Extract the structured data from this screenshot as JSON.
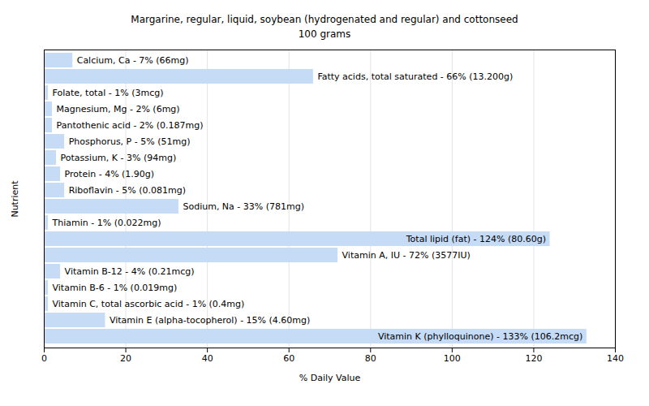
{
  "chart_data": {
    "type": "bar",
    "title": "Margarine, regular, liquid, soybean (hydrogenated and regular) and cottonseed",
    "subtitle": "100 grams",
    "xlabel": "% Daily Value",
    "ylabel": "Nutrient",
    "orientation": "horizontal",
    "tick_labels": "x",
    "grid": true,
    "color": "#c5dbf6",
    "categories": [
      "Calcium, Ca - 7% (66mg)",
      "Fatty acids, total saturated - 66% (13.200g)",
      "Folate, total - 1% (3mcg)",
      "Magnesium, Mg - 2% (6mg)",
      "Pantothenic acid - 2% (0.187mg)",
      "Phosphorus, P - 5% (51mg)",
      "Potassium, K - 3% (94mg)",
      "Protein - 4% (1.90g)",
      "Riboflavin - 5% (0.081mg)",
      "Sodium, Na - 33% (781mg)",
      "Thiamin - 1% (0.022mg)",
      "Total lipid (fat) - 124% (80.60g)",
      "Vitamin A, IU - 72% (3577IU)",
      "Vitamin B-12 - 4% (0.21mcg)",
      "Vitamin B-6 - 1% (0.019mg)",
      "Vitamin C, total ascorbic acid - 1% (0.4mg)",
      "Vitamin E (alpha-tocopherol) - 15% (4.60mg)",
      "Vitamin K (phylloquinone) - 133% (106.2mcg)"
    ],
    "values": [
      7,
      66,
      1,
      2,
      2,
      5,
      3,
      4,
      5,
      33,
      1,
      124,
      72,
      4,
      1,
      1,
      15,
      133
    ],
    "xlim": [
      0,
      140
    ],
    "xticks": [
      0,
      20,
      40,
      60,
      80,
      100,
      120,
      140
    ]
  }
}
